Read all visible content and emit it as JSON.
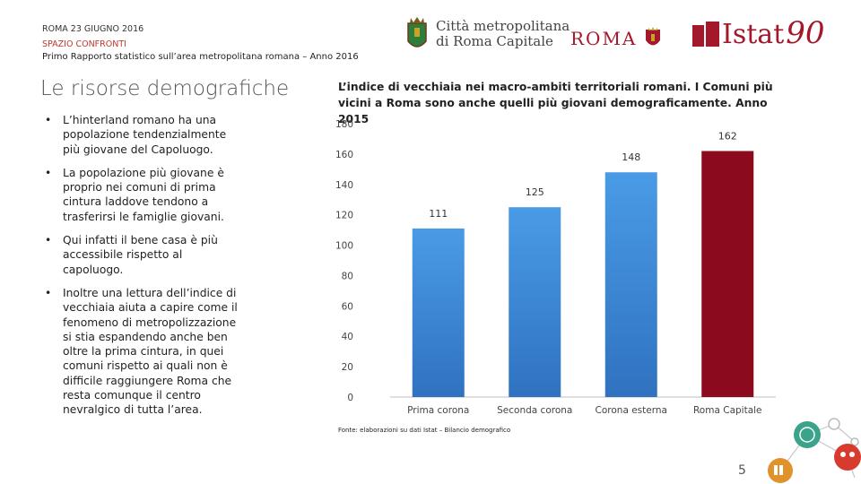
{
  "header": {
    "date": "ROMA 23 GIUGNO 2016",
    "section": "SPAZIO CONFRONTI",
    "subtitle": "Primo Rapporto statistico sull’area metropolitana romana – Anno 2016"
  },
  "logos": {
    "citta_line1": "Città metropolitana",
    "citta_line2": "di Roma Capitale",
    "roma": "ROMA",
    "istat": "Istat",
    "istat_num": "90"
  },
  "page_title": "Le risorse demografiche",
  "bullets": [
    "L’hinterland romano ha una popolazione tendenzialmente più giovane del Capoluogo.",
    "La popolazione più giovane è proprio nei comuni di prima cintura laddove tendono a trasferirsi le famiglie giovani.",
    "Qui infatti il bene casa è più accessibile rispetto al capoluogo.",
    "Inoltre una lettura dell’indice di vecchiaia aiuta a capire come il fenomeno di metropolizzazione si stia espandendo anche ben oltre la prima cintura, in quei comuni rispetto ai quali non è difficile raggiungere Roma che resta comunque il centro nevralgico di tutta l’area."
  ],
  "bullet_marker": "•",
  "chart_data": {
    "type": "bar",
    "title": "L’indice di vecchiaia nei macro-ambiti territoriali romani. I Comuni più vicini a Roma sono anche quelli più giovani demograficamente.  Anno 2015",
    "categories": [
      "Prima corona",
      "Seconda corona",
      "Corona esterna",
      "Roma Capitale"
    ],
    "values": [
      111,
      125,
      148,
      162
    ],
    "colors": [
      "#3f8fdc",
      "#3f8fdc",
      "#3f8fdc",
      "#8b0a1e"
    ],
    "yticks": [
      0,
      20,
      40,
      60,
      80,
      100,
      120,
      140,
      160,
      180
    ],
    "ylim": [
      0,
      180
    ],
    "xlabel": "",
    "ylabel": "",
    "source": "Fonte: elaborazioni su dati Istat – Bilancio demografico"
  },
  "page_number": "5"
}
